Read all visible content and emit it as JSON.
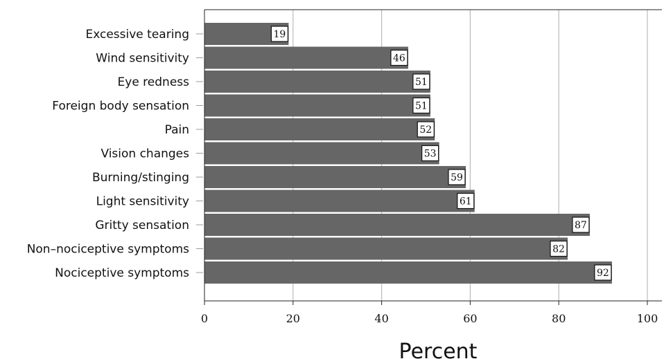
{
  "chart_data": {
    "type": "bar",
    "orientation": "horizontal",
    "categories": [
      "Excessive tearing",
      "Wind sensitivity",
      "Eye redness",
      "Foreign body sensation",
      "Pain",
      "Vision changes",
      "Burning/stinging",
      "Light sensitivity",
      "Gritty sensation",
      "Non–nociceptive symptoms",
      "Nociceptive symptoms"
    ],
    "values": [
      19,
      46,
      51,
      51,
      52,
      53,
      59,
      61,
      87,
      82,
      92
    ],
    "xlabel": "Percent",
    "xlim": [
      0,
      100
    ],
    "xticks": [
      "0",
      "20",
      "40",
      "60",
      "80",
      "100"
    ],
    "grid": "vertical",
    "data_labels": true,
    "bar_color": "#666666",
    "grid_color": "#bbbbbb"
  }
}
